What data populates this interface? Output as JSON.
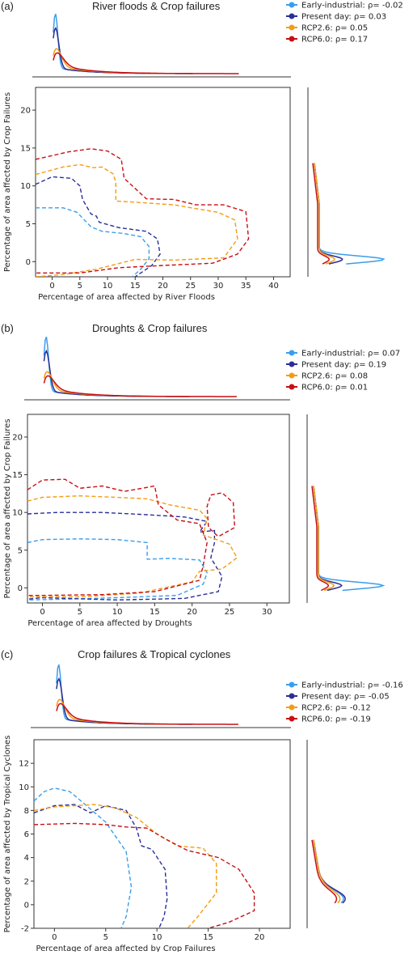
{
  "colors": {
    "early": "#3a9eec",
    "present": "#2a2f96",
    "rcp26": "#f39c12",
    "rcp60": "#c80f14"
  },
  "series_keys": [
    "early",
    "present",
    "rcp26",
    "rcp60"
  ],
  "chart_data": [
    {
      "type": "contour",
      "panel_label": "(a)",
      "title": "River floods & Crop failures",
      "xlabel": "Percentage of area affected by River Floods",
      "ylabel": "Percentage of area affected by Crop Failures",
      "xlim": [
        -3,
        43
      ],
      "ylim": [
        -2,
        23
      ],
      "xticks": [
        0,
        5,
        10,
        15,
        20,
        25,
        30,
        35,
        40
      ],
      "yticks": [
        0,
        5,
        10,
        15,
        20
      ],
      "legend": [
        {
          "key": "early",
          "label": "Early-industrial: ρ= -0.02"
        },
        {
          "key": "present",
          "label": "Present day: ρ= 0.03"
        },
        {
          "key": "rcp26",
          "label": "RCP2.6: ρ= 0.05"
        },
        {
          "key": "rcp60",
          "label": "RCP6.0: ρ= 0.17"
        }
      ],
      "series": [
        {
          "key": "early",
          "contour": [
            [
              -3,
              7.1
            ],
            [
              2,
              7.1
            ],
            [
              4.5,
              6.5
            ],
            [
              7,
              4.6
            ],
            [
              9,
              4
            ],
            [
              13,
              3.7
            ],
            [
              16,
              3.3
            ],
            [
              17.5,
              2
            ],
            [
              17.5,
              0.4
            ],
            [
              16,
              -1
            ],
            [
              14.5,
              -2
            ]
          ]
        },
        {
          "key": "present",
          "contour": [
            [
              -3,
              10.2
            ],
            [
              0,
              11.2
            ],
            [
              3.5,
              11
            ],
            [
              5,
              10
            ],
            [
              5.5,
              8.2
            ],
            [
              7,
              6.3
            ],
            [
              8,
              6
            ],
            [
              8.5,
              5.2
            ],
            [
              12,
              4.5
            ],
            [
              17,
              4
            ],
            [
              19,
              3
            ],
            [
              19.5,
              1
            ],
            [
              18,
              -0.5
            ],
            [
              16,
              -1.5
            ],
            [
              15,
              -2
            ]
          ]
        },
        {
          "key": "rcp26",
          "contour": [
            [
              -3,
              11.5
            ],
            [
              2,
              12.5
            ],
            [
              5,
              12.8
            ],
            [
              7.5,
              12.4
            ],
            [
              9,
              12.5
            ],
            [
              11,
              11.6
            ],
            [
              11.5,
              10.5
            ],
            [
              11.5,
              8
            ],
            [
              16,
              7.8
            ],
            [
              22,
              7.5
            ],
            [
              26,
              7
            ],
            [
              30,
              6.5
            ],
            [
              33,
              5.5
            ],
            [
              33.5,
              3
            ],
            [
              31,
              0.5
            ],
            [
              22,
              0.2
            ],
            [
              15,
              0.3
            ],
            [
              8,
              -1
            ],
            [
              2,
              -1.7
            ],
            [
              -3,
              -2
            ]
          ]
        },
        {
          "key": "rcp60",
          "contour": [
            [
              -3,
              13.5
            ],
            [
              3,
              14.5
            ],
            [
              7,
              14.9
            ],
            [
              10,
              14.6
            ],
            [
              12.5,
              13.5
            ],
            [
              13,
              11
            ],
            [
              17,
              8.3
            ],
            [
              22,
              8.2
            ],
            [
              26,
              7.5
            ],
            [
              31,
              7.5
            ],
            [
              35,
              6.6
            ],
            [
              35.5,
              3
            ],
            [
              33.5,
              1
            ],
            [
              29,
              -0.2
            ],
            [
              20,
              -0.5
            ],
            [
              12,
              -0.8
            ],
            [
              5,
              -1.5
            ],
            [
              -3,
              -1.5
            ]
          ]
        }
      ]
    },
    {
      "type": "contour",
      "panel_label": "(b)",
      "title": "Droughts & Crop failures",
      "xlabel": "Percentage of area affected by Droughts",
      "ylabel": "Percentage of area affected by Crop Failures",
      "xlim": [
        -2,
        33
      ],
      "ylim": [
        -2,
        23
      ],
      "xticks": [
        0,
        5,
        10,
        15,
        20,
        25,
        30
      ],
      "yticks": [
        0,
        5,
        10,
        15,
        20
      ],
      "legend": [
        {
          "key": "early",
          "label": "Early-industrial: ρ= 0.07"
        },
        {
          "key": "present",
          "label": "Present day: ρ= 0.19"
        },
        {
          "key": "rcp26",
          "label": "RCP2.6: ρ= 0.08"
        },
        {
          "key": "rcp60",
          "label": "RCP6.0: ρ= 0.01"
        }
      ],
      "series": [
        {
          "key": "early",
          "contour": [
            [
              -2,
              6
            ],
            [
              0,
              6.4
            ],
            [
              5,
              6.5
            ],
            [
              10,
              6.4
            ],
            [
              14,
              6
            ],
            [
              14,
              3.8
            ],
            [
              17,
              3.9
            ],
            [
              21,
              3.7
            ],
            [
              22,
              2
            ],
            [
              21.5,
              0.5
            ],
            [
              18,
              -1
            ],
            [
              10,
              -1.3
            ],
            [
              3,
              -1.5
            ],
            [
              -2,
              -1.6
            ]
          ]
        },
        {
          "key": "present",
          "contour": [
            [
              -2,
              9.8
            ],
            [
              2,
              10
            ],
            [
              8,
              10
            ],
            [
              14,
              9.7
            ],
            [
              19,
              9.4
            ],
            [
              22,
              8.8
            ],
            [
              21,
              7.4
            ],
            [
              23,
              7.6
            ],
            [
              23,
              6
            ],
            [
              22.5,
              4
            ],
            [
              24,
              1.5
            ],
            [
              23.5,
              -0.5
            ],
            [
              19,
              -1.4
            ],
            [
              10,
              -1.6
            ],
            [
              0,
              -1.3
            ],
            [
              -2,
              -1.5
            ]
          ]
        },
        {
          "key": "rcp26",
          "contour": [
            [
              -2,
              11.5
            ],
            [
              0,
              12
            ],
            [
              5,
              12.2
            ],
            [
              10,
              12
            ],
            [
              14,
              11.8
            ],
            [
              17,
              11
            ],
            [
              21,
              10.3
            ],
            [
              22,
              9.2
            ],
            [
              21.5,
              7
            ],
            [
              23,
              6.5
            ],
            [
              25,
              5.8
            ],
            [
              26,
              4
            ],
            [
              24,
              2.5
            ],
            [
              21,
              2.2
            ],
            [
              20,
              0.8
            ],
            [
              13,
              -0.7
            ],
            [
              5,
              -1.2
            ],
            [
              -2,
              -1.2
            ]
          ]
        },
        {
          "key": "rcp60",
          "contour": [
            [
              -2,
              13
            ],
            [
              0,
              14.3
            ],
            [
              3,
              14.4
            ],
            [
              5,
              13.2
            ],
            [
              8,
              13.5
            ],
            [
              11,
              12.8
            ],
            [
              15,
              13.5
            ],
            [
              15.5,
              11
            ],
            [
              18,
              9
            ],
            [
              21,
              8.5
            ],
            [
              22,
              6
            ],
            [
              21.5,
              3
            ],
            [
              21,
              1
            ],
            [
              15,
              -0.5
            ],
            [
              8,
              -0.9
            ],
            [
              0,
              -1
            ],
            [
              -2,
              -1
            ]
          ]
        },
        {
          "key": "rcp60",
          "contour": [
            [
              22.5,
              12.3
            ],
            [
              24,
              12.6
            ],
            [
              25.5,
              11.3
            ],
            [
              25.7,
              8
            ],
            [
              23.5,
              6.8
            ],
            [
              22.2,
              8
            ],
            [
              22,
              10.8
            ],
            [
              22.5,
              12.3
            ]
          ]
        }
      ]
    },
    {
      "type": "contour",
      "panel_label": "(c)",
      "title": "Crop failures & Tropical cyclones",
      "xlabel": "Percentage of area affected by Crop Failures",
      "ylabel": "Percentage of area affected by Tropical Cyclones",
      "xlim": [
        -2,
        23
      ],
      "ylim": [
        -2,
        14
      ],
      "xticks": [
        0,
        5,
        10,
        15,
        20
      ],
      "yticks": [
        -2,
        0,
        2,
        4,
        6,
        8,
        10,
        12
      ],
      "legend": [
        {
          "key": "early",
          "label": "Early-industrial: ρ= -0.16"
        },
        {
          "key": "present",
          "label": "Present day: ρ= -0.05"
        },
        {
          "key": "rcp26",
          "label": "RCP2.6: ρ= -0.12"
        },
        {
          "key": "rcp60",
          "label": "RCP6.0: ρ= -0.19"
        }
      ],
      "series": [
        {
          "key": "early",
          "contour": [
            [
              -2,
              8.8
            ],
            [
              -1,
              9.6
            ],
            [
              0,
              9.9
            ],
            [
              1.5,
              9.6
            ],
            [
              3,
              8.5
            ],
            [
              5,
              7
            ],
            [
              7,
              4.5
            ],
            [
              7.5,
              1.5
            ],
            [
              7,
              -1
            ],
            [
              6.5,
              -2
            ]
          ]
        },
        {
          "key": "present",
          "contour": [
            [
              -2,
              7.8
            ],
            [
              0,
              8.4
            ],
            [
              2,
              8.5
            ],
            [
              3.5,
              7.8
            ],
            [
              5,
              8.4
            ],
            [
              7,
              8
            ],
            [
              8,
              6.5
            ],
            [
              8.5,
              5
            ],
            [
              9.5,
              4.7
            ],
            [
              10.8,
              3
            ],
            [
              11,
              0.5
            ],
            [
              10.7,
              -1
            ],
            [
              10.2,
              -2
            ]
          ]
        },
        {
          "key": "rcp26",
          "contour": [
            [
              -2,
              8
            ],
            [
              0,
              8.3
            ],
            [
              2,
              8.4
            ],
            [
              4,
              8.5
            ],
            [
              6,
              8.2
            ],
            [
              8,
              7.4
            ],
            [
              10,
              6
            ],
            [
              12,
              5
            ],
            [
              14.5,
              4.8
            ],
            [
              15.8,
              3.5
            ],
            [
              15.8,
              1
            ],
            [
              14,
              -1
            ],
            [
              13,
              -2
            ]
          ]
        },
        {
          "key": "rcp60",
          "contour": [
            [
              -2,
              6.8
            ],
            [
              2,
              6.9
            ],
            [
              5,
              6.8
            ],
            [
              7,
              6.6
            ],
            [
              9,
              6.5
            ],
            [
              11,
              5.5
            ],
            [
              13,
              4.6
            ],
            [
              16,
              4
            ],
            [
              18,
              3
            ],
            [
              19.5,
              1
            ],
            [
              19.5,
              -0.5
            ],
            [
              17,
              -1.5
            ],
            [
              15,
              -2
            ]
          ]
        }
      ]
    }
  ]
}
